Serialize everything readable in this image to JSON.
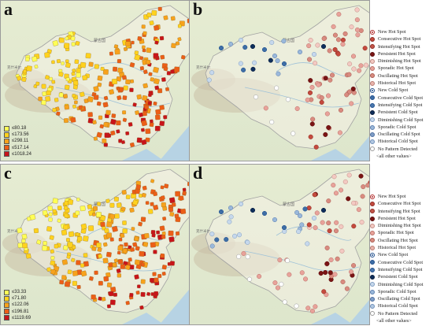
{
  "panels": [
    {
      "letter": "a",
      "kind": "quantile",
      "legend": [
        "≤80.18",
        "≤173.56",
        "≤298.11",
        "≤517.14",
        "≤1018.24"
      ]
    },
    {
      "letter": "b",
      "kind": "hotspot"
    },
    {
      "letter": "c",
      "kind": "quantile",
      "legend": [
        "≤33.33",
        "≤71.80",
        "≤122.06",
        "≤196.81",
        "≤1119.69"
      ]
    },
    {
      "letter": "d",
      "kind": "hotspot"
    }
  ],
  "quantile_colors": [
    "#ffff55",
    "#ffd21e",
    "#f7a21c",
    "#ec5e17",
    "#c8141a"
  ],
  "hotspot_legend": [
    {
      "label": "New Hot Spot",
      "fill": "#ffffff",
      "stroke": "#b02828",
      "center": "#b02828"
    },
    {
      "label": "Consecutive Hot Spot",
      "fill": "#c44a3e",
      "stroke": "#8c2a22"
    },
    {
      "label": "Intensifying Hot Spot",
      "fill": "#c4564a",
      "stroke": "#8c2a22"
    },
    {
      "label": "Persistent Hot Spot",
      "fill": "#7a1414",
      "stroke": "#5a0c0c"
    },
    {
      "label": "Diminishing Hot Spot",
      "fill": "#f3c9c2",
      "stroke": "#c28a82"
    },
    {
      "label": "Sporadic Hot Spot",
      "fill": "#e8a29a",
      "stroke": "#b87068"
    },
    {
      "label": "Oscillating Hot Spot",
      "fill": "#d98b80",
      "stroke": "#a85c52"
    },
    {
      "label": "Historical Hot Spot",
      "fill": "#eab4ac",
      "stroke": "#b87a70"
    },
    {
      "label": "New Cold Spot",
      "fill": "#ffffff",
      "stroke": "#1f4e8c",
      "center": "#1f4e8c"
    },
    {
      "label": "Consecutive Cold Spot",
      "fill": "#3e6ea6",
      "stroke": "#1f4e8c"
    },
    {
      "label": "Intensifying Cold Spot",
      "fill": "#4a78ae",
      "stroke": "#1f4e8c"
    },
    {
      "label": "Persistent Cold Spot",
      "fill": "#0e2e5c",
      "stroke": "#071a38"
    },
    {
      "label": "Diminishing Cold Spot",
      "fill": "#c6d8ec",
      "stroke": "#7e9cc0"
    },
    {
      "label": "Sporadic Cold Spot",
      "fill": "#9ab8da",
      "stroke": "#5d7fae"
    },
    {
      "label": "Oscillating Cold Spot",
      "fill": "#7e9dc6",
      "stroke": "#4d6e9e"
    },
    {
      "label": "Historical Cold Spot",
      "fill": "#b2c8e2",
      "stroke": "#6f8fb8"
    },
    {
      "label": "No Pattern Detected",
      "fill": "#ffffff",
      "stroke": "#9a9a9a"
    }
  ],
  "hotspot_other": "<all other values>",
  "map_labels": {
    "country": "蒙古国",
    "region": "克什米尔"
  }
}
